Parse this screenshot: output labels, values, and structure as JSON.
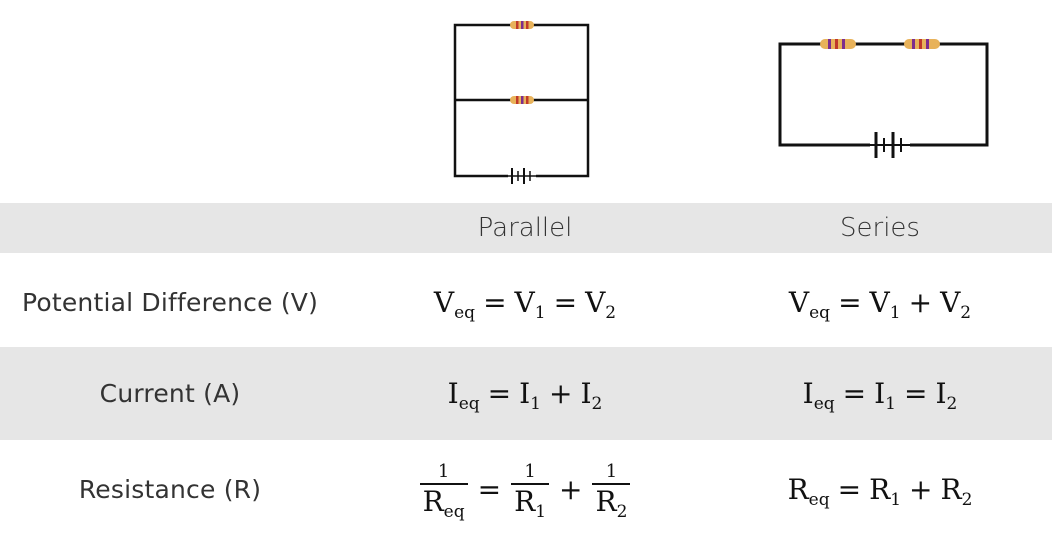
{
  "colors": {
    "wire": "#111111",
    "resistor_body": "#e8b25a",
    "band_1": "#c0392b",
    "band_2": "#7d2d8e",
    "row_shade": "#e6e6e6"
  },
  "table": {
    "headers": {
      "row_label": "",
      "parallel": "Parallel",
      "series": "Series"
    },
    "rows": [
      {
        "label": "Potential Difference (V)",
        "parallel": {
          "lhs": "V",
          "lhs_sub": "eq",
          "t1": "V",
          "t1_sub": "1",
          "op1": "=",
          "t2": "V",
          "t2_sub": "2",
          "op2": "="
        },
        "series": {
          "lhs": "V",
          "lhs_sub": "eq",
          "t1": "V",
          "t1_sub": "1",
          "op1": "=",
          "t2": "V",
          "t2_sub": "2",
          "op2": "+"
        }
      },
      {
        "label": "Current (A)",
        "parallel": {
          "lhs": "I",
          "lhs_sub": "eq",
          "t1": "I",
          "t1_sub": "1",
          "op1": "=",
          "t2": "I",
          "t2_sub": "2",
          "op2": "+"
        },
        "series": {
          "lhs": "I",
          "lhs_sub": "eq",
          "t1": "I",
          "t1_sub": "1",
          "op1": "=",
          "t2": "I",
          "t2_sub": "2",
          "op2": "="
        }
      },
      {
        "label": "Resistance (R)",
        "parallel": {
          "num": "1",
          "lhs": "R",
          "lhs_sub": "eq",
          "t1": "R",
          "t1_sub": "1",
          "op1": "=",
          "t2": "R",
          "t2_sub": "2",
          "op2": "+"
        },
        "series": {
          "lhs": "R",
          "lhs_sub": "eq",
          "t1": "R",
          "t1_sub": "1",
          "op1": "=",
          "t2": "R",
          "t2_sub": "2",
          "op2": "+"
        }
      }
    ]
  }
}
